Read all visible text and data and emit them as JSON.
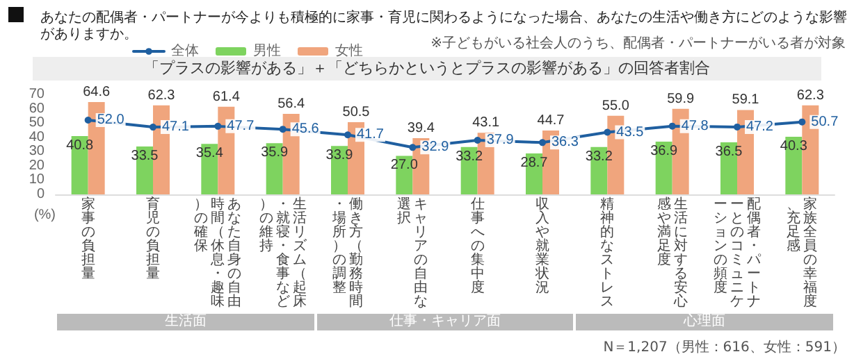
{
  "chart_data": {
    "type": "bar",
    "title": "あなたの配偶者・パートナーが今よりも積極的に家事・育児に関わるようになった場合、あなたの生活や働き方にどのような影響がありますか。",
    "subtitle": "「プラスの影響がある」＋「どちらかというとプラスの影響がある」の回答者割合",
    "ylabel": "(%)",
    "categories": [
      "家事の負担量",
      "育児の負担量",
      "あなた自身の自由時間（休息・趣味）の確保",
      "生活リズム（起床・就寝・食事など）の維持",
      "働き方（勤務時間・場所）の調整",
      "キャリアの自由な選択",
      "仕事への集中度",
      "収入や就業状況",
      "精神的なストレス",
      "生活に対する安心感や満足度",
      "配偶者・パートナーとのコミュニケーションの頻度",
      "家族全員の幸福度、充足感"
    ],
    "series": [
      {
        "name": "全体",
        "type": "line",
        "color": "#1f5fa0",
        "values": [
          52.0,
          47.1,
          47.7,
          45.6,
          41.7,
          32.9,
          37.9,
          36.3,
          43.5,
          47.8,
          47.2,
          50.7
        ],
        "value_labels": [
          "52.0",
          "47.1",
          "47.7",
          "45.6",
          "41.7",
          "32.9",
          "37.9",
          "36.3",
          "43.5",
          "47.8",
          "47.2",
          "50.7"
        ]
      },
      {
        "name": "男性",
        "color": "#7ed35f",
        "values": [
          40.8,
          33.5,
          35.4,
          35.9,
          33.9,
          27.0,
          33.2,
          28.7,
          33.2,
          36.9,
          36.5,
          40.3
        ],
        "value_labels": [
          "40.8",
          "33.5",
          "35.4",
          "35.9",
          "33.9",
          "27.0",
          "33.2",
          "28.7",
          "33.2",
          "36.9",
          "36.5",
          "40.3"
        ]
      },
      {
        "name": "女性",
        "color": "#f0a57d",
        "values": [
          64.6,
          62.3,
          61.4,
          56.4,
          50.5,
          39.4,
          43.1,
          44.7,
          55.0,
          59.9,
          59.1,
          62.3
        ],
        "value_labels": [
          "64.6",
          "62.3",
          "61.4",
          "56.4",
          "50.5",
          "39.4",
          "43.1",
          "44.7",
          "55.0",
          "59.9",
          "59.1",
          "62.3"
        ]
      }
    ],
    "ylim": [
      0,
      70
    ],
    "yticks": [
      0,
      10,
      20,
      30,
      40,
      50,
      60,
      70
    ],
    "grid": false,
    "legend": "top",
    "marker": "circle",
    "line_style": "solid",
    "annotations": [
      "※子どもがいる社会人のうち、配偶者・パートナーがいる者が対象",
      "生活面",
      "仕事・キャリア面",
      "心理面",
      "N＝1,207（男性：616、女性：591）"
    ]
  }
}
